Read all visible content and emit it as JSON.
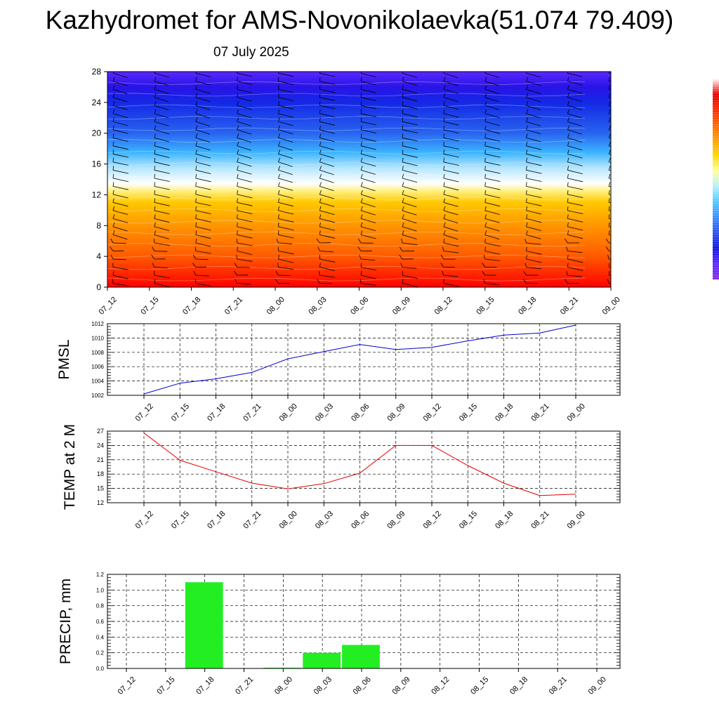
{
  "header": {
    "title": "Kazhydromet for AMS-Novonikolaevka(51.074 79.409)",
    "subtitle": "07 July 2025"
  },
  "chart_data": [
    {
      "type": "heatmap",
      "title": "",
      "x": [
        "07_12",
        "07_15",
        "07_18",
        "07_21",
        "08_00",
        "08_03",
        "08_06",
        "08_09",
        "08_12",
        "08_15",
        "08_18",
        "08_21",
        "09_00"
      ],
      "yticks": [
        0,
        4,
        8,
        12,
        16,
        20,
        24,
        28
      ],
      "ylim": [
        0,
        28
      ],
      "colorscale": [
        "#ff0000",
        "#ff5a00",
        "#ff9600",
        "#ffc800",
        "#fff080",
        "#ffffff",
        "#b4e6ff",
        "#3cb4ff",
        "#2864f0",
        "#1428e6",
        "#2814e6",
        "#5a28ff"
      ],
      "color_stops_y": [
        0,
        4,
        8,
        11,
        12.5,
        13.5,
        15.5,
        17.5,
        20,
        24,
        26,
        28
      ],
      "wind_barbs": true,
      "colorbar_colors": [
        "#8c28e6",
        "#5a28ff",
        "#1414e6",
        "#2850f0",
        "#3c8cff",
        "#50c8ff",
        "#b4f0ff",
        "#ffffa0",
        "#ffdc00",
        "#ffa000",
        "#ff6400",
        "#ff2800",
        "#e60000",
        "#ffffff"
      ]
    },
    {
      "type": "line",
      "ylabel": "PMSL",
      "x": [
        "07_12",
        "07_15",
        "07_18",
        "07_21",
        "08_00",
        "08_03",
        "08_06",
        "08_09",
        "08_12",
        "08_15",
        "08_18",
        "08_21",
        "09_00"
      ],
      "series": [
        {
          "values": [
            1002.2,
            1003.7,
            1004.3,
            1005.2,
            1007.1,
            1008.1,
            1009.1,
            1008.4,
            1008.7,
            1009.6,
            1010.4,
            1010.7,
            1011.8
          ],
          "color": "#0000cc"
        }
      ],
      "ylim": [
        1002,
        1012
      ],
      "yticks": [
        "1002",
        "1004",
        "1006",
        "1008",
        "1010",
        "1012"
      ],
      "grid": true
    },
    {
      "type": "line",
      "ylabel": "TEMP at 2 M",
      "x": [
        "07_12",
        "07_15",
        "07_18",
        "07_21",
        "08_00",
        "08_03",
        "08_06",
        "08_09",
        "08_12",
        "08_15",
        "08_18",
        "08_21",
        "09_00"
      ],
      "series": [
        {
          "values": [
            26.6,
            20.9,
            18.5,
            16.1,
            14.9,
            16.0,
            18.2,
            24.0,
            24.0,
            19.8,
            16.1,
            13.5,
            13.8
          ],
          "color": "#e60000"
        }
      ],
      "ylim": [
        12,
        27
      ],
      "yticks": [
        "12",
        "15",
        "18",
        "21",
        "24",
        "27"
      ],
      "grid": true
    },
    {
      "type": "bar",
      "ylabel": "PRECIP, mm",
      "categories": [
        "07_12",
        "07_15",
        "07_18",
        "07_21",
        "08_00",
        "08_03",
        "08_06",
        "08_09",
        "08_12",
        "08_15",
        "08_18",
        "08_21",
        "09_00"
      ],
      "values": [
        0,
        0,
        1.1,
        0,
        0.01,
        0.2,
        0.3,
        0,
        0,
        0,
        0,
        0,
        0
      ],
      "color": "#22ee22",
      "ylim": [
        0,
        1.2
      ],
      "yticks": [
        "0.0",
        "0.2",
        "0.4",
        "0.6",
        "0.8",
        "1.0",
        "1.2"
      ],
      "grid": true
    }
  ]
}
